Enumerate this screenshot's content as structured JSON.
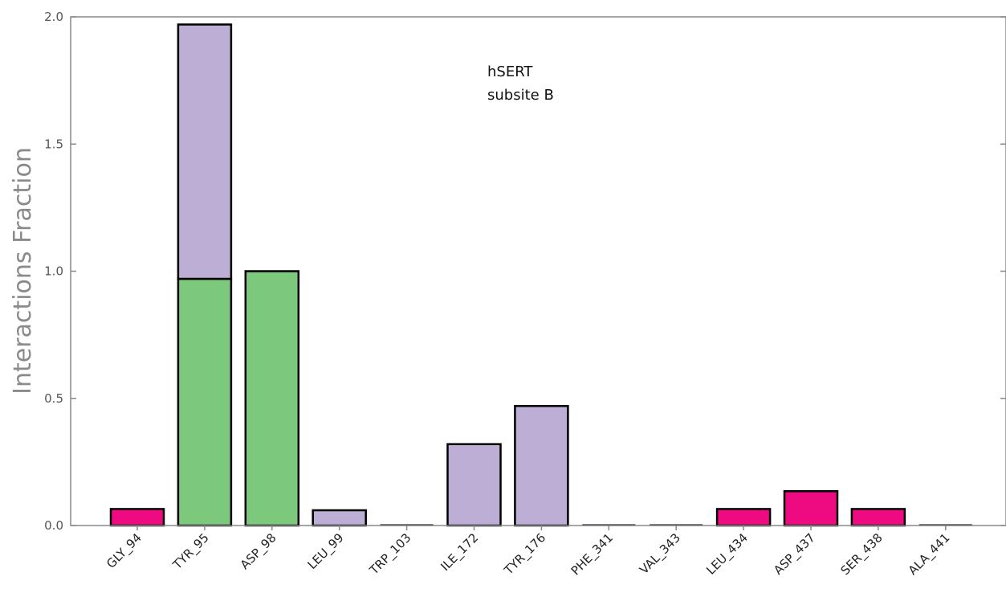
{
  "chart_data": {
    "type": "bar",
    "stacked": true,
    "categories": [
      "GLY_94",
      "TYR_95",
      "ASP_98",
      "LEU_99",
      "TRP_103",
      "ILE_172",
      "TYR_176",
      "PHE_341",
      "VAL_343",
      "LEU_434",
      "ASP_437",
      "SER_438",
      "ALA_441"
    ],
    "series": [
      {
        "color": "#7cc87c",
        "values": [
          0,
          0.97,
          1.0,
          0,
          0,
          0,
          0,
          0,
          0,
          0,
          0,
          0,
          0
        ]
      },
      {
        "color": "#bcaed5",
        "values": [
          0,
          1.0,
          0,
          0.06,
          0,
          0.32,
          0.47,
          0,
          0,
          0,
          0,
          0,
          0
        ]
      },
      {
        "color": "#ee0a80",
        "values": [
          0.065,
          0,
          0,
          0,
          0,
          0,
          0,
          0,
          0,
          0.065,
          0.135,
          0.065,
          0
        ]
      }
    ],
    "ylabel": "Interactions Fraction",
    "ylim": [
      0,
      2.0
    ],
    "yticks": [
      "0.0",
      "0.5",
      "1.0",
      "1.5",
      "2.0"
    ],
    "annotation": [
      "hSERT",
      "subsite B"
    ],
    "grid": false
  }
}
